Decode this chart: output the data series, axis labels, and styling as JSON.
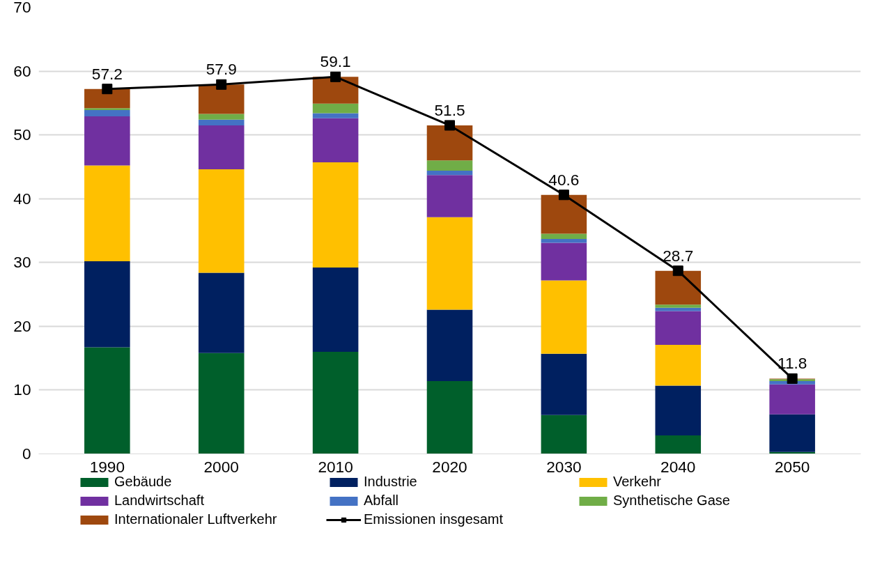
{
  "chart_data": {
    "type": "bar",
    "stacked": true,
    "categories": [
      "1990",
      "2000",
      "2010",
      "2020",
      "2030",
      "2040",
      "2050"
    ],
    "series": [
      {
        "name": "Gebäude",
        "color": "#005f2b",
        "values": [
          16.7,
          15.8,
          16.0,
          11.4,
          6.1,
          2.9,
          0.3
        ]
      },
      {
        "name": "Industrie",
        "color": "#002060",
        "values": [
          13.5,
          12.6,
          13.2,
          11.2,
          9.6,
          7.8,
          5.9
        ]
      },
      {
        "name": "Verkehr",
        "color": "#ffc000",
        "values": [
          15.0,
          16.2,
          16.5,
          14.5,
          11.5,
          6.4,
          0
        ]
      },
      {
        "name": "Landwirtschaft",
        "color": "#7030a0",
        "values": [
          7.7,
          6.9,
          6.9,
          6.6,
          5.9,
          5.3,
          4.7
        ]
      },
      {
        "name": "Abfall",
        "color": "#4472c4",
        "values": [
          1.0,
          0.9,
          0.8,
          0.7,
          0.6,
          0.5,
          0.5
        ]
      },
      {
        "name": "Synthetische Gase",
        "color": "#70ad47",
        "values": [
          0.3,
          0.9,
          1.5,
          1.6,
          0.8,
          0.5,
          0.3
        ]
      },
      {
        "name": "Internationaler Luftverkehr",
        "color": "#9e480e",
        "values": [
          3.0,
          4.6,
          4.2,
          5.5,
          6.1,
          5.3,
          0.1
        ]
      },
      {
        "name": "Emissionen insgesamt",
        "type": "line",
        "color": "#000000",
        "marker": "square",
        "values": [
          57.2,
          57.9,
          59.1,
          51.5,
          40.6,
          28.7,
          11.8
        ],
        "value_labels": [
          "57.2",
          "57.9",
          "59.1",
          "51.5",
          "40.6",
          "28.7",
          "11.8"
        ]
      }
    ],
    "ylim": [
      0,
      70
    ],
    "yticks": [
      0,
      10,
      20,
      30,
      40,
      50,
      60,
      70
    ],
    "grid": "y",
    "legend": "bottom"
  }
}
